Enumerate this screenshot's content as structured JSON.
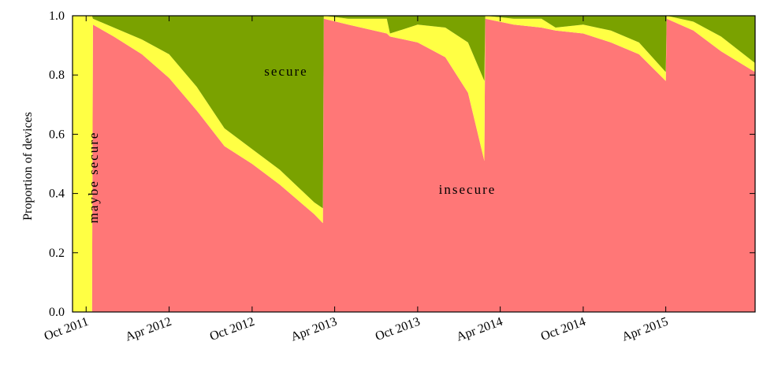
{
  "chart_data": {
    "type": "area",
    "stacked": true,
    "normalized": true,
    "xlabel": "",
    "ylabel": "Proportion of devices",
    "ylim": [
      0,
      1
    ],
    "grid": false,
    "legend": "none (labels placed on regions)",
    "y_ticks": [
      "0.0",
      "0.2",
      "0.4",
      "0.6",
      "0.8",
      "1.0"
    ],
    "x_ticks": [
      "Oct 2011",
      "Apr 2012",
      "Oct 2012",
      "Apr 2013",
      "Oct 2013",
      "Apr 2014",
      "Oct 2014",
      "Apr 2015"
    ],
    "region_labels": {
      "secure": "secure",
      "insecure": "insecure",
      "maybe_secure": "maybe secure"
    },
    "colors": {
      "insecure": "#ff7777",
      "maybe_secure": "#ffff44",
      "secure": "#7aa200"
    },
    "series": [
      {
        "name": "insecure",
        "x": [
          "2011-09-01",
          "2011-10-14",
          "2011-10-16",
          "2011-12-01",
          "2012-02-01",
          "2012-04-01",
          "2012-06-01",
          "2012-08-01",
          "2012-10-01",
          "2012-12-01",
          "2013-02-15",
          "2013-03-06",
          "2013-03-08",
          "2013-05-01",
          "2013-07-25",
          "2013-08-01",
          "2013-10-01",
          "2013-12-01",
          "2014-01-20",
          "2014-02-25",
          "2014-02-27",
          "2014-05-01",
          "2014-07-01",
          "2014-08-01",
          "2014-10-01",
          "2014-12-01",
          "2015-02-01",
          "2015-04-01",
          "2015-04-03",
          "2015-06-01",
          "2015-08-01",
          "2015-10-15"
        ],
        "y": [
          0.0,
          0.0,
          0.97,
          0.93,
          0.87,
          0.79,
          0.68,
          0.56,
          0.5,
          0.43,
          0.33,
          0.3,
          0.99,
          0.97,
          0.94,
          0.93,
          0.91,
          0.86,
          0.74,
          0.51,
          0.99,
          0.97,
          0.96,
          0.95,
          0.94,
          0.91,
          0.87,
          0.78,
          0.99,
          0.95,
          0.88,
          0.81
        ]
      },
      {
        "name": "maybe secure",
        "x": [
          "2011-09-01",
          "2011-10-14",
          "2011-10-16",
          "2011-12-01",
          "2012-02-01",
          "2012-04-01",
          "2012-06-01",
          "2012-08-01",
          "2012-10-01",
          "2012-12-01",
          "2013-02-15",
          "2013-03-06",
          "2013-03-08",
          "2013-05-01",
          "2013-07-25",
          "2013-08-01",
          "2013-10-01",
          "2013-12-01",
          "2014-01-20",
          "2014-02-25",
          "2014-02-27",
          "2014-05-01",
          "2014-07-01",
          "2014-08-01",
          "2014-10-01",
          "2014-12-01",
          "2015-02-01",
          "2015-04-01",
          "2015-04-03",
          "2015-06-01",
          "2015-08-01",
          "2015-10-15"
        ],
        "y": [
          1.0,
          1.0,
          0.02,
          0.03,
          0.05,
          0.08,
          0.08,
          0.06,
          0.05,
          0.05,
          0.04,
          0.05,
          0.01,
          0.02,
          0.05,
          0.01,
          0.06,
          0.1,
          0.17,
          0.27,
          0.01,
          0.02,
          0.03,
          0.01,
          0.03,
          0.04,
          0.04,
          0.03,
          0.01,
          0.03,
          0.05,
          0.03
        ]
      },
      {
        "name": "secure",
        "x": [
          "2011-09-01",
          "2011-10-14",
          "2011-10-16",
          "2011-12-01",
          "2012-02-01",
          "2012-04-01",
          "2012-06-01",
          "2012-08-01",
          "2012-10-01",
          "2012-12-01",
          "2013-02-15",
          "2013-03-06",
          "2013-03-08",
          "2013-05-01",
          "2013-07-25",
          "2013-08-01",
          "2013-10-01",
          "2013-12-01",
          "2014-01-20",
          "2014-02-25",
          "2014-02-27",
          "2014-05-01",
          "2014-07-01",
          "2014-08-01",
          "2014-10-01",
          "2014-12-01",
          "2015-02-01",
          "2015-04-01",
          "2015-04-03",
          "2015-06-01",
          "2015-08-01",
          "2015-10-15"
        ],
        "y": [
          0.0,
          0.0,
          0.01,
          0.04,
          0.08,
          0.13,
          0.24,
          0.38,
          0.45,
          0.52,
          0.63,
          0.65,
          0.0,
          0.01,
          0.01,
          0.06,
          0.03,
          0.04,
          0.09,
          0.22,
          0.0,
          0.01,
          0.01,
          0.04,
          0.03,
          0.05,
          0.09,
          0.19,
          0.0,
          0.02,
          0.07,
          0.16
        ]
      }
    ]
  }
}
